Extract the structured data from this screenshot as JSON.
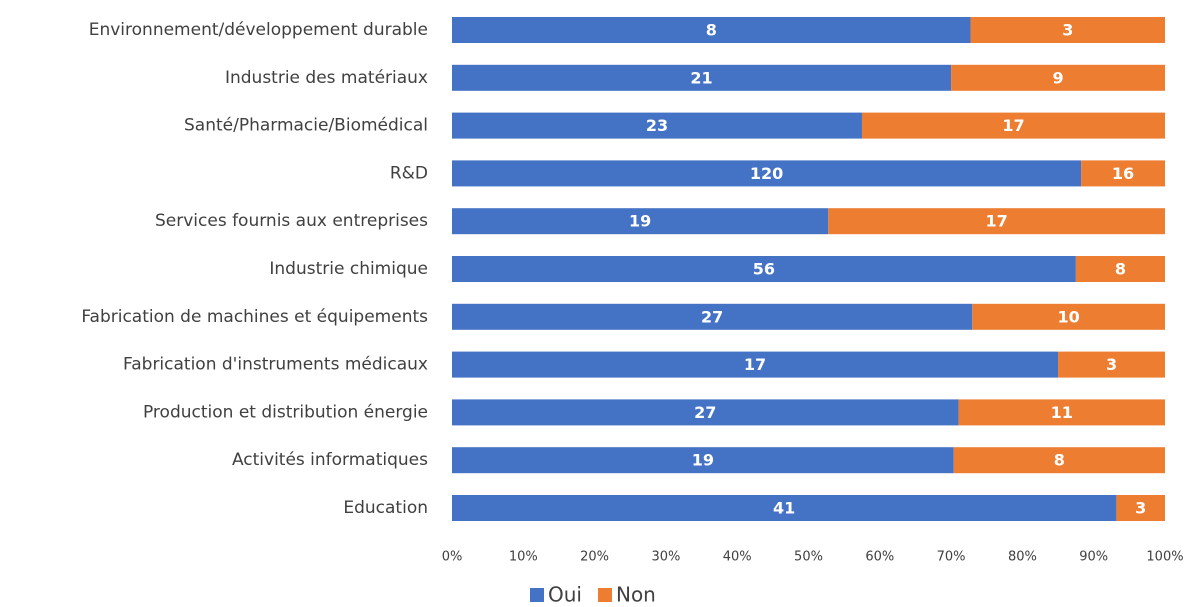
{
  "chart_data": {
    "type": "bar",
    "orientation": "horizontal",
    "stacking": "percent",
    "categories": [
      "Environnement/développement durable",
      "Industrie des matériaux",
      "Santé/Pharmacie/Biomédical",
      "R&D",
      "Services fournis aux entreprises",
      "Industrie chimique",
      "Fabrication de machines et équipements",
      "Fabrication d'instruments médicaux",
      "Production et distribution énergie",
      "Activités informatiques",
      "Education"
    ],
    "series": [
      {
        "name": "Oui",
        "color": "#4472c4",
        "values": [
          8,
          21,
          23,
          120,
          19,
          56,
          27,
          17,
          27,
          19,
          41
        ]
      },
      {
        "name": "Non",
        "color": "#ed7d31",
        "values": [
          3,
          9,
          17,
          16,
          17,
          8,
          10,
          3,
          11,
          8,
          3
        ]
      }
    ],
    "xlim": [
      0,
      100
    ],
    "xticks": [
      {
        "value": 0,
        "label": "0%"
      },
      {
        "value": 10,
        "label": "10%"
      },
      {
        "value": 20,
        "label": "20%"
      },
      {
        "value": 30,
        "label": "30%"
      },
      {
        "value": 40,
        "label": "40%"
      },
      {
        "value": 50,
        "label": "50%"
      },
      {
        "value": 60,
        "label": "60%"
      },
      {
        "value": 70,
        "label": "70%"
      },
      {
        "value": 80,
        "label": "80%"
      },
      {
        "value": 90,
        "label": "90%"
      },
      {
        "value": 100,
        "label": "100%"
      }
    ],
    "legend": "bottom"
  }
}
